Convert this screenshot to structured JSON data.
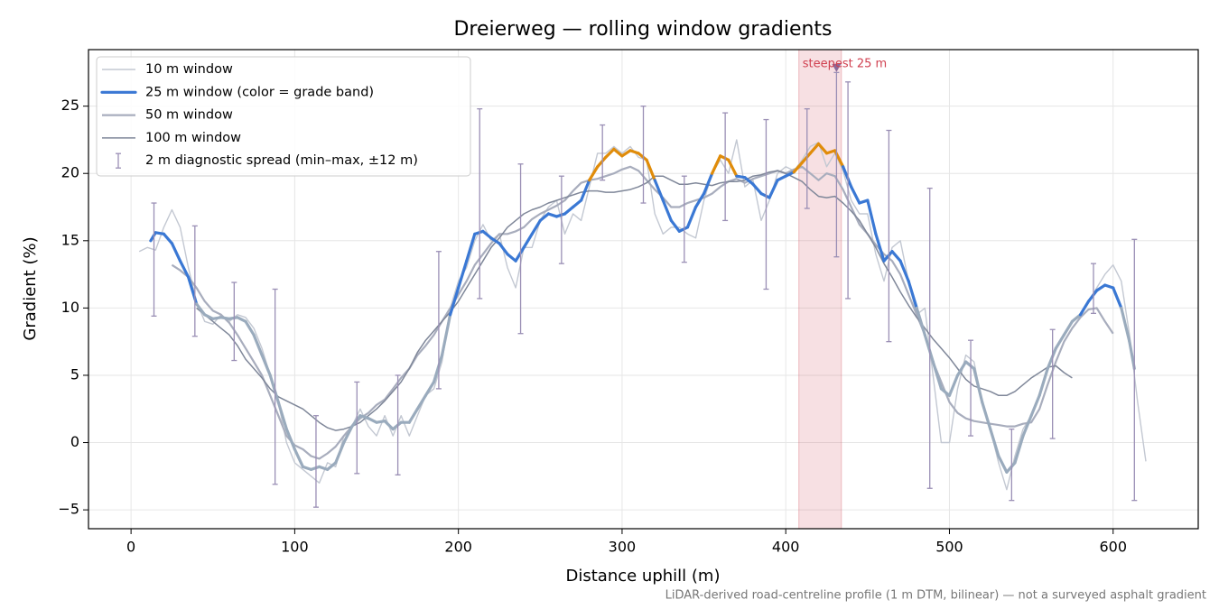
{
  "chart_data": {
    "type": "line",
    "title": "Dreierweg — rolling window gradients",
    "xlabel": "Distance uphill (m)",
    "ylabel": "Gradient (%)",
    "footnote": "LiDAR-derived road-centreline profile (1 m DTM, bilinear) — not a surveyed asphalt gradient",
    "xlim": [
      -26,
      652
    ],
    "ylim": [
      -6.4,
      29.2
    ],
    "xticks": [
      0,
      100,
      200,
      300,
      400,
      500,
      600
    ],
    "yticks": [
      {
        "value": -5,
        "label": "−5"
      },
      0,
      5,
      10,
      15,
      20,
      25
    ],
    "grid": true,
    "legend": "upper left",
    "grade_bands": [
      10,
      20
    ],
    "band_colors": [
      "#9aabbd",
      "#3a78d4",
      "#e08c0a"
    ],
    "series": [
      {
        "name": "10 m window",
        "color": "#c3c8d2",
        "x": [
          5,
          10,
          15,
          20,
          25,
          30,
          35,
          40,
          45,
          50,
          55,
          60,
          65,
          70,
          75,
          80,
          85,
          90,
          95,
          100,
          105,
          110,
          115,
          120,
          125,
          130,
          135,
          140,
          145,
          150,
          155,
          160,
          165,
          170,
          175,
          180,
          185,
          190,
          195,
          200,
          205,
          210,
          215,
          220,
          225,
          230,
          235,
          240,
          245,
          250,
          255,
          260,
          265,
          270,
          275,
          280,
          285,
          290,
          295,
          300,
          305,
          310,
          315,
          320,
          325,
          330,
          335,
          340,
          345,
          350,
          355,
          360,
          365,
          370,
          375,
          380,
          385,
          390,
          395,
          400,
          405,
          410,
          415,
          420,
          425,
          430,
          435,
          440,
          445,
          450,
          455,
          460,
          465,
          470,
          475,
          480,
          485,
          490,
          495,
          500,
          505,
          510,
          515,
          520,
          525,
          530,
          535,
          540,
          545,
          550,
          555,
          560,
          565,
          570,
          575,
          580,
          585,
          590,
          595,
          600,
          605,
          610,
          615,
          620
        ],
        "values": [
          14.2,
          14.5,
          14.3,
          16,
          17.3,
          16,
          13,
          10.5,
          9,
          8.8,
          9.5,
          9,
          9.5,
          9.3,
          8.5,
          7,
          5,
          3,
          0,
          -1.5,
          -2,
          -2.5,
          -3,
          -1.5,
          -1.8,
          0.5,
          1.2,
          2.5,
          1.2,
          0.5,
          2,
          0.5,
          2,
          0.5,
          2,
          3.5,
          4,
          6,
          10,
          12,
          13,
          15,
          16.2,
          15,
          15.5,
          13,
          11.5,
          14.5,
          14.5,
          16.5,
          17.5,
          18,
          15.5,
          17,
          16.5,
          19,
          21.5,
          21.5,
          22,
          21.5,
          22,
          21.2,
          21,
          17,
          15.5,
          16,
          16,
          15.5,
          15.2,
          18,
          20,
          21,
          20,
          22.5,
          19,
          19.5,
          16.5,
          18,
          20,
          20.5,
          20.2,
          21,
          22,
          22.3,
          20.5,
          21.5,
          20.2,
          18,
          17,
          17,
          14,
          12,
          14.5,
          15,
          12,
          9.5,
          10,
          5,
          0,
          0,
          4,
          6.5,
          6,
          3,
          1,
          -1.5,
          -3.5,
          -1,
          1,
          2,
          3.5,
          5.5,
          7,
          8,
          9,
          9.5,
          10.5,
          11.5,
          12.5,
          13.2,
          12,
          8,
          3,
          -1.4
        ]
      },
      {
        "name": "25 m window (color = grade band)",
        "color": "#3a78d4",
        "x": [
          12,
          15,
          20,
          25,
          30,
          35,
          40,
          45,
          50,
          55,
          60,
          65,
          70,
          75,
          80,
          85,
          90,
          95,
          100,
          105,
          110,
          115,
          120,
          125,
          130,
          135,
          140,
          145,
          150,
          155,
          160,
          165,
          170,
          175,
          180,
          185,
          190,
          195,
          200,
          205,
          210,
          215,
          220,
          225,
          230,
          235,
          240,
          245,
          250,
          255,
          260,
          265,
          270,
          275,
          280,
          285,
          290,
          295,
          300,
          305,
          310,
          315,
          320,
          325,
          330,
          335,
          340,
          345,
          350,
          355,
          360,
          365,
          370,
          375,
          380,
          385,
          390,
          395,
          400,
          405,
          410,
          415,
          420,
          425,
          430,
          435,
          440,
          445,
          450,
          455,
          460,
          465,
          470,
          475,
          480,
          485,
          490,
          495,
          500,
          505,
          510,
          515,
          520,
          525,
          530,
          535,
          540,
          545,
          550,
          555,
          560,
          565,
          570,
          575,
          580,
          585,
          590,
          595,
          600,
          605,
          610,
          613
        ],
        "values": [
          15,
          15.6,
          15.5,
          14.8,
          13.5,
          12.3,
          10.3,
          9.5,
          9.2,
          9.3,
          9.2,
          9.3,
          9,
          8,
          6.5,
          5,
          3,
          1,
          -0.5,
          -1.8,
          -2,
          -1.8,
          -2,
          -1.5,
          0,
          1.2,
          2,
          1.8,
          1.5,
          1.6,
          1,
          1.5,
          1.5,
          2.5,
          3.5,
          4.5,
          6.5,
          9.5,
          11.5,
          13.5,
          15.5,
          15.7,
          15.2,
          14.8,
          14,
          13.5,
          14.5,
          15.5,
          16.5,
          17,
          16.8,
          17,
          17.5,
          18,
          19.5,
          20.5,
          21.2,
          21.8,
          21.3,
          21.7,
          21.5,
          21,
          19.5,
          18,
          16.5,
          15.7,
          16,
          17.5,
          18.5,
          20,
          21.3,
          21,
          19.8,
          19.7,
          19.2,
          18.5,
          18.2,
          19.5,
          19.8,
          20.1,
          20.8,
          21.5,
          22.2,
          21.5,
          21.7,
          20.5,
          19,
          17.8,
          18,
          15.5,
          13.5,
          14.2,
          13.5,
          12,
          10,
          8,
          6,
          4,
          3.5,
          5,
          6,
          5.5,
          3,
          1,
          -1,
          -2.2,
          -1.5,
          0.5,
          2,
          3.5,
          5.5,
          7,
          8,
          9,
          9.5,
          10.5,
          11.3,
          11.7,
          11.5,
          10,
          7.5,
          5.5
        ]
      },
      {
        "name": "50 m window",
        "color": "#a8adbd",
        "x": [
          25,
          30,
          35,
          40,
          45,
          50,
          55,
          60,
          65,
          70,
          75,
          80,
          85,
          90,
          95,
          100,
          105,
          110,
          115,
          120,
          125,
          130,
          135,
          140,
          145,
          150,
          155,
          160,
          165,
          170,
          175,
          180,
          185,
          190,
          195,
          200,
          205,
          210,
          215,
          220,
          225,
          230,
          235,
          240,
          245,
          250,
          255,
          260,
          265,
          270,
          275,
          280,
          285,
          290,
          295,
          300,
          305,
          310,
          315,
          320,
          325,
          330,
          335,
          340,
          345,
          350,
          355,
          360,
          365,
          370,
          375,
          380,
          385,
          390,
          395,
          400,
          405,
          410,
          415,
          420,
          425,
          430,
          435,
          440,
          445,
          450,
          455,
          460,
          465,
          470,
          475,
          480,
          485,
          490,
          495,
          500,
          505,
          510,
          515,
          520,
          525,
          530,
          535,
          540,
          545,
          550,
          555,
          560,
          565,
          570,
          575,
          580,
          585,
          590,
          595,
          600
        ],
        "values": [
          13.2,
          12.8,
          12.3,
          11.5,
          10.5,
          9.8,
          9.5,
          8.9,
          8,
          7,
          6,
          5,
          3.5,
          2,
          0.5,
          -0.2,
          -0.5,
          -1,
          -1.2,
          -0.8,
          -0.3,
          0.5,
          1.2,
          1.8,
          2.2,
          2.8,
          3.2,
          4,
          4.8,
          5.5,
          6.5,
          7.2,
          8,
          9,
          10,
          11,
          12,
          13.2,
          14,
          14.8,
          15.5,
          15.5,
          15.7,
          16,
          16.6,
          17,
          17.3,
          17.6,
          18,
          18.7,
          19.3,
          19.5,
          19.6,
          19.8,
          20,
          20.3,
          20.5,
          20.2,
          19.5,
          18.8,
          18.2,
          17.5,
          17.5,
          17.8,
          18,
          18.2,
          18.5,
          19,
          19.4,
          19.6,
          19.3,
          19.6,
          19.8,
          20,
          20.2,
          20,
          20.3,
          20.5,
          20,
          19.5,
          20,
          19.8,
          18.8,
          17.5,
          16.2,
          15.5,
          14.7,
          14,
          13.5,
          12.5,
          11,
          9.5,
          8,
          6,
          4.5,
          3,
          2.2,
          1.8,
          1.6,
          1.5,
          1.4,
          1.3,
          1.2,
          1.2,
          1.4,
          1.5,
          2.5,
          4.3,
          6,
          7.5,
          8.5,
          9.3,
          9.9,
          10,
          9,
          8.1
        ]
      },
      {
        "name": "100 m window",
        "color": "#7f8799",
        "x": [
          40,
          45,
          50,
          55,
          60,
          65,
          70,
          75,
          80,
          85,
          90,
          95,
          100,
          105,
          110,
          115,
          120,
          125,
          130,
          135,
          140,
          145,
          150,
          155,
          160,
          165,
          170,
          175,
          180,
          185,
          190,
          195,
          200,
          205,
          210,
          215,
          220,
          225,
          230,
          235,
          240,
          245,
          250,
          255,
          260,
          265,
          270,
          275,
          280,
          285,
          290,
          295,
          300,
          305,
          310,
          315,
          320,
          325,
          330,
          335,
          340,
          345,
          350,
          355,
          360,
          365,
          370,
          375,
          380,
          385,
          390,
          395,
          400,
          405,
          410,
          415,
          420,
          425,
          430,
          435,
          440,
          445,
          450,
          455,
          460,
          465,
          470,
          475,
          480,
          485,
          490,
          495,
          500,
          505,
          510,
          515,
          520,
          525,
          530,
          535,
          540,
          545,
          550,
          555,
          560,
          565,
          570,
          575
        ],
        "values": [
          10,
          9.5,
          9,
          8.5,
          8,
          7.2,
          6.2,
          5.5,
          4.8,
          4,
          3.4,
          3.1,
          2.8,
          2.5,
          2,
          1.5,
          1.1,
          0.9,
          1,
          1.2,
          1.5,
          2,
          2.5,
          3.1,
          3.8,
          4.5,
          5.5,
          6.7,
          7.6,
          8.3,
          9,
          9.7,
          10.5,
          11.5,
          12.5,
          13.5,
          14.5,
          15.2,
          16,
          16.5,
          17,
          17.3,
          17.5,
          17.8,
          18,
          18.2,
          18.4,
          18.6,
          18.7,
          18.7,
          18.6,
          18.6,
          18.7,
          18.8,
          19,
          19.3,
          19.8,
          19.8,
          19.5,
          19.2,
          19.2,
          19.3,
          19.2,
          19.1,
          19.3,
          19.4,
          19.4,
          19.5,
          19.8,
          19.9,
          20.1,
          20.2,
          20,
          19.7,
          19.4,
          18.8,
          18.3,
          18.2,
          18.3,
          17.8,
          17.2,
          16.5,
          15.5,
          14.5,
          13.3,
          12.3,
          11.2,
          10.2,
          9.3,
          8.5,
          7.7,
          7,
          6.3,
          5.5,
          4.7,
          4.2,
          4,
          3.8,
          3.5,
          3.5,
          3.8,
          4.3,
          4.8,
          5.2,
          5.6,
          5.7,
          5.2,
          4.8
        ]
      }
    ],
    "spread": {
      "name": "2 m diagnostic spread (min–max, ±12 m)",
      "color": "#9a8fb5",
      "x": [
        14,
        39,
        63,
        88,
        113,
        138,
        163,
        188,
        213,
        238,
        263,
        288,
        313,
        338,
        363,
        388,
        413,
        431,
        438,
        463,
        488,
        513,
        538,
        563,
        588,
        613
      ],
      "low": [
        9.4,
        7.9,
        6.1,
        -3.1,
        -4.8,
        -2.3,
        -2.4,
        4,
        10.7,
        8.1,
        13.3,
        19.5,
        17.8,
        13.4,
        16.5,
        11.4,
        17.4,
        13.8,
        10.7,
        7.5,
        -3.4,
        0.5,
        -4.3,
        0.3,
        9.6,
        -4.3
      ],
      "high": [
        17.8,
        16.1,
        11.9,
        11.4,
        2,
        4.5,
        5,
        14.2,
        24.8,
        20.7,
        19.8,
        23.6,
        25,
        19.8,
        24.5,
        24,
        24.8,
        27.5,
        26.8,
        23.2,
        18.9,
        7.6,
        1,
        8.4,
        13.3,
        15.1
      ]
    },
    "highlight": {
      "label": "steepest 25 m",
      "xmin": 408,
      "xmax": 434,
      "marker_x": 431,
      "marker_y": 27.8,
      "color": "#d04050"
    }
  }
}
